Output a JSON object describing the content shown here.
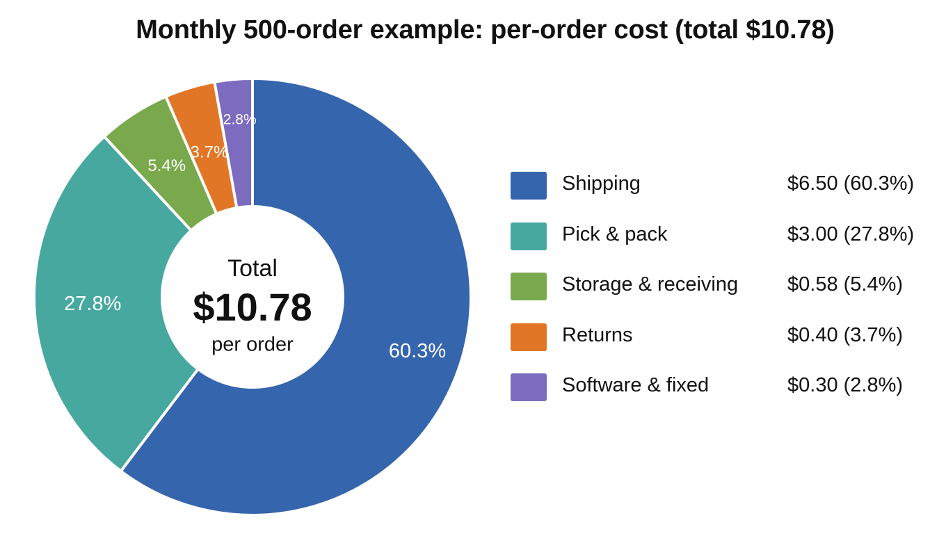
{
  "chart_data": {
    "type": "pie",
    "title": "Monthly 500-order example: per-order cost (total $10.78)",
    "center": {
      "line1": "Total",
      "line2": "$10.78",
      "line3": "per order"
    },
    "slices": [
      {
        "name": "Shipping",
        "value": 6.5,
        "percent_label": "60.3%",
        "legend_value": "$6.50 (60.3%)",
        "color": "#3565ad"
      },
      {
        "name": "Pick & pack",
        "value": 3.0,
        "percent_label": "27.8%",
        "legend_value": "$3.00 (27.8%)",
        "color": "#47a8a0"
      },
      {
        "name": "Storage & receiving",
        "value": 0.58,
        "percent_label": "5.4%",
        "legend_value": "$0.58 (5.4%)",
        "color": "#79a94c"
      },
      {
        "name": "Returns",
        "value": 0.4,
        "percent_label": "3.7%",
        "legend_value": "$0.40 (3.7%)",
        "color": "#e27627"
      },
      {
        "name": "Software & fixed",
        "value": 0.3,
        "percent_label": "2.8%",
        "legend_value": "$0.30 (2.8%)",
        "color": "#7b6cbf"
      }
    ],
    "legend_position": "right",
    "start_angle": "12 o'clock",
    "direction": "clockwise"
  }
}
